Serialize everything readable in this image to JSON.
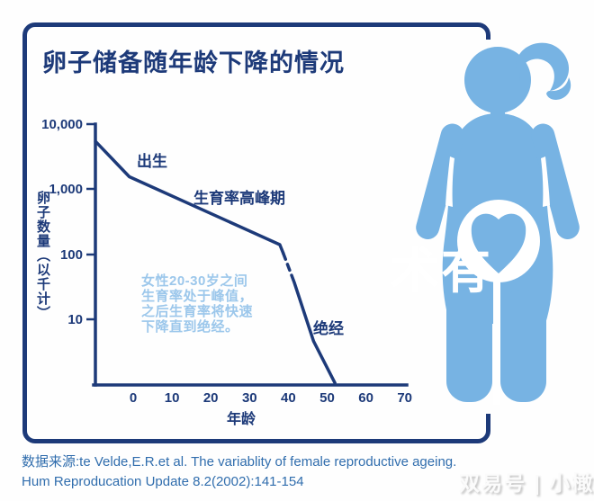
{
  "colors": {
    "navy": "#1d3a79",
    "fig-blue": "#77b3e3",
    "annotation-blue": "#9cc7eb",
    "source-blue": "#306dad",
    "bg": "#fefefe",
    "wm-shadow": "#c4c4c4"
  },
  "title": "卵子储备随年龄下降的情况",
  "chart": {
    "y_axis_title": "卵子数量（以千计）",
    "x_axis_title": "年龄",
    "y_ticks": [
      "10,000",
      "1,000",
      "100",
      "10"
    ],
    "x_ticks": [
      "0",
      "10",
      "20",
      "30",
      "40",
      "50",
      "60",
      "70"
    ],
    "label_birth": "出生",
    "label_peak": "生育率高峰期",
    "label_menopause": "绝经",
    "annotation": "女性20-30岁之间\n生育率处于峰值，\n之后生育率将快速\n下降直到绝经。"
  },
  "chart_data": {
    "type": "line",
    "title": "卵子储备随年龄下降的情况",
    "xlabel": "年龄",
    "ylabel": "卵子数量（以千计）",
    "x_range": [
      -10,
      70
    ],
    "y_scale": "log",
    "y_range": [
      1,
      10000
    ],
    "grid": false,
    "x": [
      -9.7,
      -1,
      37.8,
      38.7,
      41.5,
      46.5,
      52
    ],
    "y": [
      5400,
      1550,
      140,
      103,
      37,
      4.6,
      1.05
    ],
    "segments": [
      {
        "from": 0,
        "to": 3,
        "style": "solid"
      },
      {
        "from": 3,
        "to": 4,
        "style": "dashed"
      },
      {
        "from": 4,
        "to": 6,
        "style": "solid"
      }
    ],
    "annotations": [
      "出生",
      "生育率高峰期",
      "绝经"
    ]
  },
  "source": "数据来源:te Velde,E.R.et al. The variablity of female reproductive ageing.\nHum Reproducation Update 8.2(2002):141-154",
  "watermark_center": "术有",
  "watermark_bottom": "双易号 | 小橄榄"
}
